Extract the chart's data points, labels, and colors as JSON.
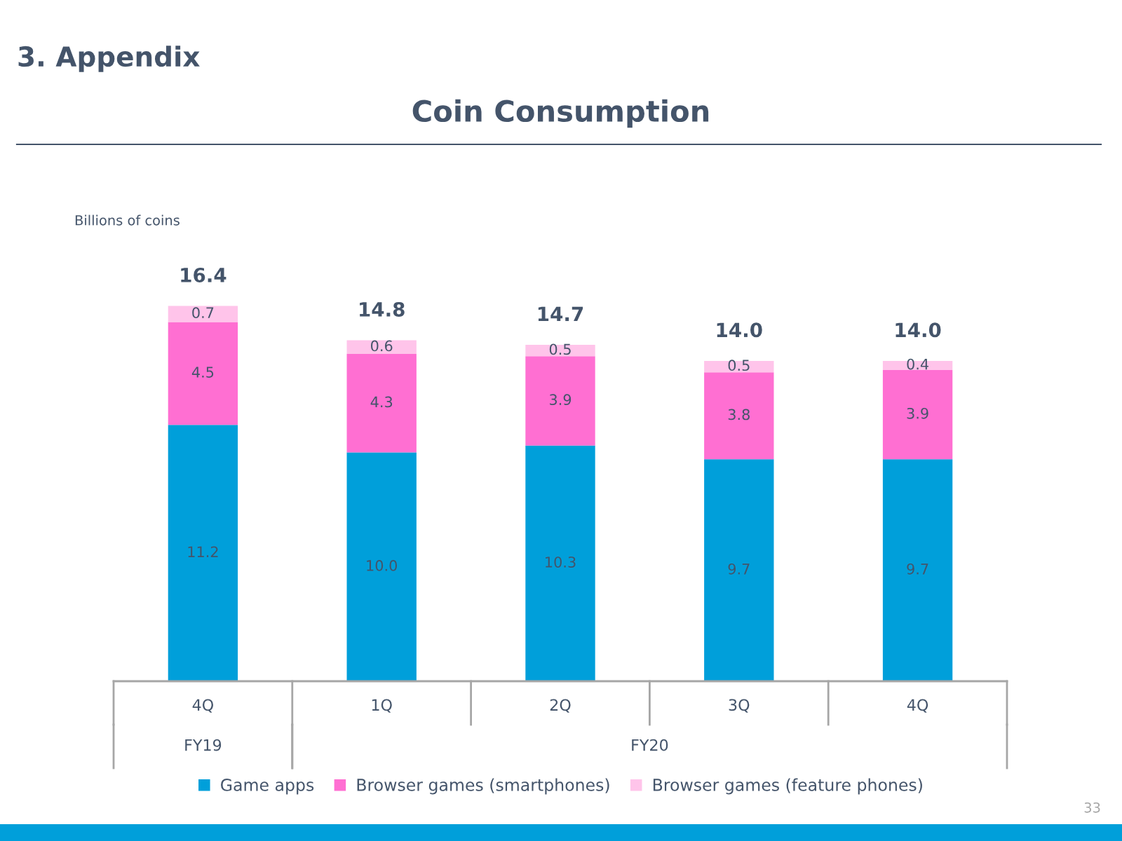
{
  "chart_data": {
    "type": "bar",
    "title": "Coin Consumption",
    "categories": [
      "4Q",
      "1Q",
      "2Q",
      "3Q",
      "4Q"
    ],
    "series": [
      {
        "name": "Game apps",
        "color": "#009fda",
        "values": [
          11.2,
          10.0,
          10.3,
          9.7,
          9.7
        ],
        "value_labels": [
          "11.2",
          "10.0",
          "10.3",
          "9.7",
          "9.7"
        ]
      },
      {
        "name": "Browser games (smartphones)",
        "color": "#ff6fd2",
        "values": [
          4.5,
          4.3,
          3.9,
          3.8,
          3.9
        ],
        "value_labels": [
          "4.5",
          "4.3",
          "3.9",
          "3.8",
          "3.9"
        ]
      },
      {
        "name": "Browser games (feature phones)",
        "color": "#ffc4ea",
        "values": [
          0.7,
          0.6,
          0.5,
          0.5,
          0.4
        ],
        "value_labels": [
          "0.7",
          "0.6",
          "0.5",
          "0.5",
          "0.4"
        ]
      }
    ],
    "stacked": true,
    "totals": [
      "16.4",
      "14.8",
      "14.7",
      "14.0",
      "14.0"
    ],
    "legend": "bottom",
    "annotations": [
      "3. Appendix",
      "Billions of coins",
      "FY19",
      "FY20",
      "33"
    ]
  }
}
